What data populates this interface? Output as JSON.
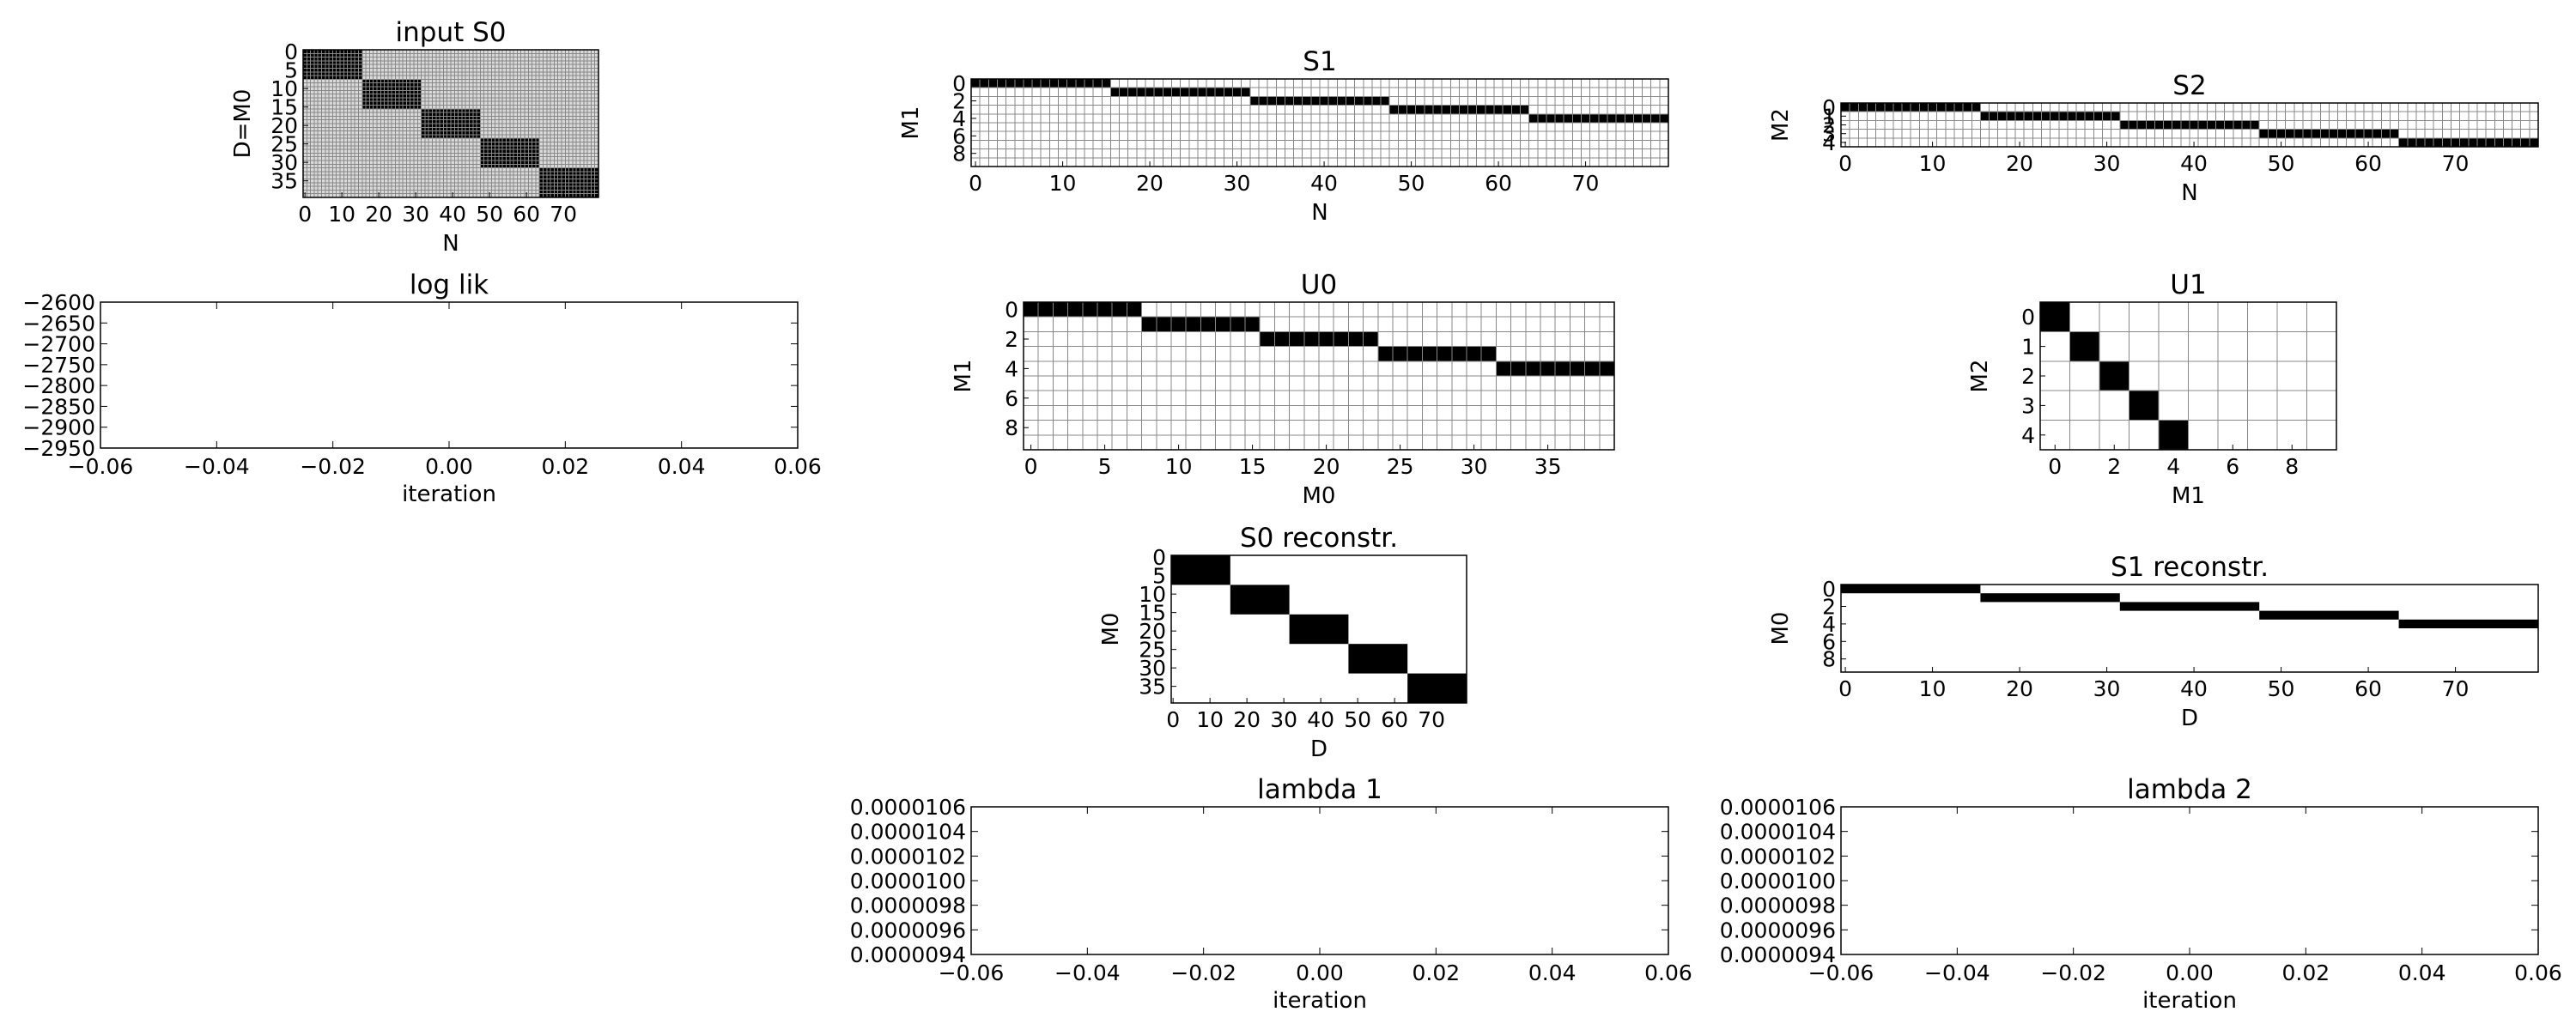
{
  "chart_data": [
    {
      "id": "input-s0",
      "type": "heatmap",
      "title": "input S0",
      "xlabel": "N",
      "ylabel": "D=M0",
      "rows": 40,
      "cols": 80,
      "cell_grid": true,
      "xticks": [
        0,
        10,
        20,
        30,
        40,
        50,
        60,
        70
      ],
      "yticks": [
        0,
        5,
        10,
        15,
        20,
        25,
        30,
        35
      ],
      "background": "#d9d9d9",
      "blocks": [
        {
          "row_start": 0,
          "row_end": 8,
          "col_start": 0,
          "col_end": 16
        },
        {
          "row_start": 8,
          "row_end": 16,
          "col_start": 16,
          "col_end": 32
        },
        {
          "row_start": 16,
          "row_end": 24,
          "col_start": 32,
          "col_end": 48
        },
        {
          "row_start": 24,
          "row_end": 32,
          "col_start": 48,
          "col_end": 64
        },
        {
          "row_start": 32,
          "row_end": 40,
          "col_start": 64,
          "col_end": 80
        }
      ]
    },
    {
      "id": "s1",
      "type": "heatmap",
      "title": "S1",
      "xlabel": "N",
      "ylabel": "M1",
      "rows": 10,
      "cols": 80,
      "cell_grid": true,
      "xticks": [
        0,
        10,
        20,
        30,
        40,
        50,
        60,
        70
      ],
      "yticks": [
        0,
        2,
        4,
        6,
        8
      ],
      "background": "#ffffff",
      "blocks": [
        {
          "row_start": 0,
          "row_end": 1,
          "col_start": 0,
          "col_end": 16
        },
        {
          "row_start": 1,
          "row_end": 2,
          "col_start": 16,
          "col_end": 32
        },
        {
          "row_start": 2,
          "row_end": 3,
          "col_start": 32,
          "col_end": 48
        },
        {
          "row_start": 3,
          "row_end": 4,
          "col_start": 48,
          "col_end": 64
        },
        {
          "row_start": 4,
          "row_end": 5,
          "col_start": 64,
          "col_end": 80
        }
      ]
    },
    {
      "id": "s2",
      "type": "heatmap",
      "title": "S2",
      "xlabel": "N",
      "ylabel": "M2",
      "rows": 5,
      "cols": 80,
      "cell_grid": true,
      "xticks": [
        0,
        10,
        20,
        30,
        40,
        50,
        60,
        70
      ],
      "yticks": [
        0,
        1,
        2,
        3,
        4
      ],
      "background": "#ffffff",
      "blocks": [
        {
          "row_start": 0,
          "row_end": 1,
          "col_start": 0,
          "col_end": 16
        },
        {
          "row_start": 1,
          "row_end": 2,
          "col_start": 16,
          "col_end": 32
        },
        {
          "row_start": 2,
          "row_end": 3,
          "col_start": 32,
          "col_end": 48
        },
        {
          "row_start": 3,
          "row_end": 4,
          "col_start": 48,
          "col_end": 64
        },
        {
          "row_start": 4,
          "row_end": 5,
          "col_start": 64,
          "col_end": 80
        }
      ]
    },
    {
      "id": "log-lik",
      "type": "line",
      "title": "log lik",
      "xlabel": "iteration",
      "ylabel": "",
      "xlim": [
        -0.06,
        0.06
      ],
      "ylim": [
        -2950,
        -2600
      ],
      "xticks": [
        "−0.06",
        "−0.04",
        "−0.02",
        "0.00",
        "0.02",
        "0.04",
        "0.06"
      ],
      "yticks": [
        "−2600",
        "−2650",
        "−2700",
        "−2750",
        "−2800",
        "−2850",
        "−2900",
        "−2950"
      ],
      "series": []
    },
    {
      "id": "u0",
      "type": "heatmap",
      "title": "U0",
      "xlabel": "M0",
      "ylabel": "M1",
      "rows": 10,
      "cols": 40,
      "cell_grid": true,
      "xticks": [
        0,
        5,
        10,
        15,
        20,
        25,
        30,
        35
      ],
      "yticks": [
        0,
        2,
        4,
        6,
        8
      ],
      "background": "#ffffff",
      "blocks": [
        {
          "row_start": 0,
          "row_end": 1,
          "col_start": 0,
          "col_end": 8
        },
        {
          "row_start": 1,
          "row_end": 2,
          "col_start": 8,
          "col_end": 16
        },
        {
          "row_start": 2,
          "row_end": 3,
          "col_start": 16,
          "col_end": 24
        },
        {
          "row_start": 3,
          "row_end": 4,
          "col_start": 24,
          "col_end": 32
        },
        {
          "row_start": 4,
          "row_end": 5,
          "col_start": 32,
          "col_end": 40
        }
      ]
    },
    {
      "id": "u1",
      "type": "heatmap",
      "title": "U1",
      "xlabel": "M1",
      "ylabel": "M2",
      "rows": 5,
      "cols": 10,
      "cell_grid": true,
      "xticks": [
        0,
        2,
        4,
        6,
        8
      ],
      "yticks": [
        0,
        1,
        2,
        3,
        4
      ],
      "background": "#ffffff",
      "blocks": [
        {
          "row_start": 0,
          "row_end": 1,
          "col_start": 0,
          "col_end": 1
        },
        {
          "row_start": 1,
          "row_end": 2,
          "col_start": 1,
          "col_end": 2
        },
        {
          "row_start": 2,
          "row_end": 3,
          "col_start": 2,
          "col_end": 3
        },
        {
          "row_start": 3,
          "row_end": 4,
          "col_start": 3,
          "col_end": 4
        },
        {
          "row_start": 4,
          "row_end": 5,
          "col_start": 4,
          "col_end": 5
        }
      ]
    },
    {
      "id": "s0-reconstr",
      "type": "heatmap",
      "title": "S0 reconstr.",
      "xlabel": "D",
      "ylabel": "M0",
      "rows": 40,
      "cols": 80,
      "cell_grid": false,
      "xticks": [
        0,
        10,
        20,
        30,
        40,
        50,
        60,
        70
      ],
      "yticks": [
        0,
        5,
        10,
        15,
        20,
        25,
        30,
        35
      ],
      "background": "#ffffff",
      "blocks": [
        {
          "row_start": 0,
          "row_end": 8,
          "col_start": 0,
          "col_end": 16
        },
        {
          "row_start": 8,
          "row_end": 16,
          "col_start": 16,
          "col_end": 32
        },
        {
          "row_start": 16,
          "row_end": 24,
          "col_start": 32,
          "col_end": 48
        },
        {
          "row_start": 24,
          "row_end": 32,
          "col_start": 48,
          "col_end": 64
        },
        {
          "row_start": 32,
          "row_end": 40,
          "col_start": 64,
          "col_end": 80
        }
      ]
    },
    {
      "id": "s1-reconstr",
      "type": "heatmap",
      "title": "S1 reconstr.",
      "xlabel": "D",
      "ylabel": "M0",
      "rows": 10,
      "cols": 80,
      "cell_grid": false,
      "xticks": [
        0,
        10,
        20,
        30,
        40,
        50,
        60,
        70
      ],
      "yticks": [
        0,
        2,
        4,
        6,
        8
      ],
      "background": "#ffffff",
      "blocks": [
        {
          "row_start": 0,
          "row_end": 1,
          "col_start": 0,
          "col_end": 16
        },
        {
          "row_start": 1,
          "row_end": 2,
          "col_start": 16,
          "col_end": 32
        },
        {
          "row_start": 2,
          "row_end": 3,
          "col_start": 32,
          "col_end": 48
        },
        {
          "row_start": 3,
          "row_end": 4,
          "col_start": 48,
          "col_end": 64
        },
        {
          "row_start": 4,
          "row_end": 5,
          "col_start": 64,
          "col_end": 80
        }
      ]
    },
    {
      "id": "lambda-1",
      "type": "line",
      "title": "lambda 1",
      "xlabel": "iteration",
      "ylabel": "",
      "xlim": [
        -0.06,
        0.06
      ],
      "ylim": [
        9.4e-06,
        1.06e-05
      ],
      "xticks": [
        "−0.06",
        "−0.04",
        "−0.02",
        "0.00",
        "0.02",
        "0.04",
        "0.06"
      ],
      "yticks": [
        "0.0000106",
        "0.0000104",
        "0.0000102",
        "0.0000100",
        "0.0000098",
        "0.0000096",
        "0.0000094"
      ],
      "series": []
    },
    {
      "id": "lambda-2",
      "type": "line",
      "title": "lambda 2",
      "xlabel": "iteration",
      "ylabel": "",
      "xlim": [
        -0.06,
        0.06
      ],
      "ylim": [
        9.4e-06,
        1.06e-05
      ],
      "xticks": [
        "−0.06",
        "−0.04",
        "−0.02",
        "0.00",
        "0.02",
        "0.04",
        "0.06"
      ],
      "yticks": [
        "0.0000106",
        "0.0000104",
        "0.0000102",
        "0.0000100",
        "0.0000098",
        "0.0000096",
        "0.0000094"
      ],
      "series": []
    }
  ],
  "colors": {
    "block_fill": "#000000",
    "grid_line": "#888888",
    "axes_line": "#000000"
  }
}
